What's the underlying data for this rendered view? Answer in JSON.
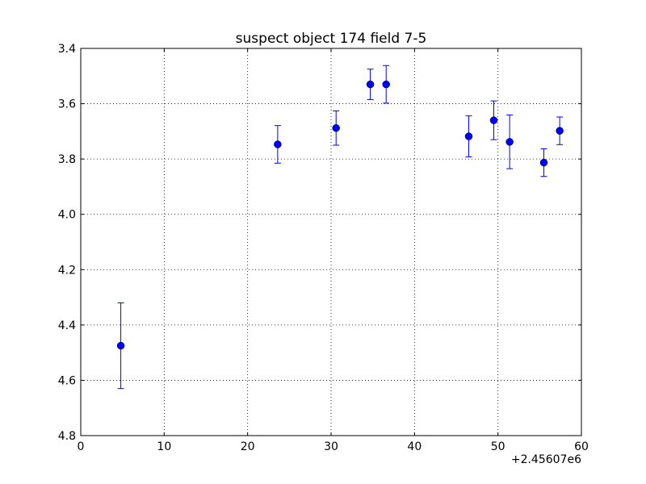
{
  "chart_data": {
    "type": "scatter",
    "title": "suspect object 174 field 7-5",
    "xlabel": "",
    "ylabel": "",
    "x_offset_label": "+2.45607e6",
    "xlim": [
      0,
      60
    ],
    "ylim": [
      3.4,
      4.8
    ],
    "y_inverted": true,
    "x_ticks": [
      0,
      10,
      20,
      30,
      40,
      50,
      60
    ],
    "x_tick_labels": [
      "0",
      "10",
      "20",
      "30",
      "40",
      "50",
      "60"
    ],
    "y_ticks": [
      3.4,
      3.6,
      3.8,
      4.0,
      4.2,
      4.4,
      4.6,
      4.8
    ],
    "y_tick_labels": [
      "3.4",
      "3.6",
      "3.8",
      "4.0",
      "4.2",
      "4.4",
      "4.6",
      "4.8"
    ],
    "grid": true,
    "marker_color": "#0000ff",
    "points": [
      {
        "x": 4.8,
        "y": 4.475,
        "err": 0.155
      },
      {
        "x": 23.6,
        "y": 3.747,
        "err": 0.068
      },
      {
        "x": 30.6,
        "y": 3.688,
        "err": 0.062
      },
      {
        "x": 34.7,
        "y": 3.53,
        "err": 0.055
      },
      {
        "x": 36.6,
        "y": 3.53,
        "err": 0.068
      },
      {
        "x": 46.5,
        "y": 3.718,
        "err": 0.074
      },
      {
        "x": 49.5,
        "y": 3.66,
        "err": 0.07
      },
      {
        "x": 51.4,
        "y": 3.738,
        "err": 0.097
      },
      {
        "x": 55.5,
        "y": 3.813,
        "err": 0.05
      },
      {
        "x": 57.4,
        "y": 3.698,
        "err": 0.05
      }
    ]
  }
}
